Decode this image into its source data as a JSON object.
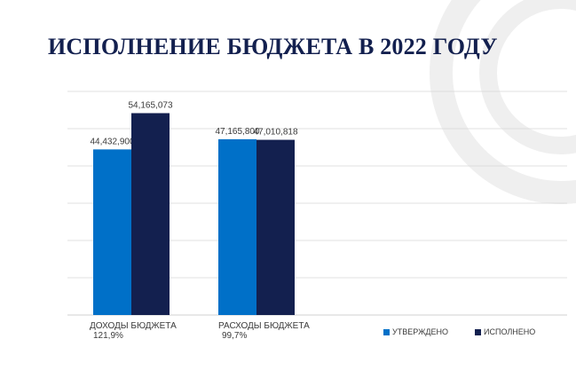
{
  "title": "ИСПОЛНЕНИЕ БЮДЖЕТА В 2022 ГОДУ",
  "colors": {
    "approved": "#0070c8",
    "executed": "#13204f",
    "title": "#13204f",
    "grid": "#d9d9d9",
    "decoration": "#ececec"
  },
  "chart_data": {
    "type": "bar",
    "categories": [
      "ДОХОДЫ БЮДЖЕТА",
      "РАСХОДЫ БЮДЖЕТА"
    ],
    "category_percents": [
      "121,9%",
      "99,7%"
    ],
    "series": [
      {
        "name": "УТВЕРЖДЕНО",
        "values": [
          44432900,
          47165800
        ],
        "labels": [
          "44,432,900",
          "47,165,800"
        ],
        "color": "#0070c8"
      },
      {
        "name": "ИСПОЛНЕНО",
        "values": [
          54165073,
          47010818
        ],
        "labels": [
          "54,165,073",
          "47,010,818"
        ],
        "color": "#13204f"
      }
    ],
    "ylim": [
      0,
      60000000
    ],
    "grid": true,
    "legend": "bottom-right",
    "xlabel": "",
    "ylabel": ""
  }
}
